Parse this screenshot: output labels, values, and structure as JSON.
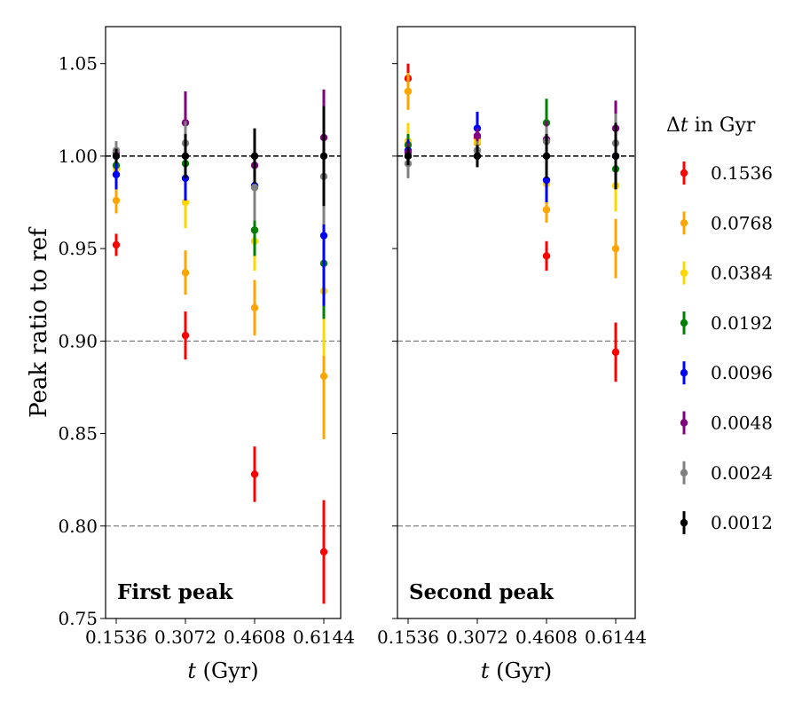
{
  "chart_data": {
    "type": "scatter",
    "ylabel": "Peak ratio to ref",
    "ylim": [
      0.75,
      1.07
    ],
    "yticks": [
      "0.75",
      "0.80",
      "0.85",
      "0.90",
      "0.95",
      "1.00",
      "1.05"
    ],
    "reference_lines": [
      {
        "y": 1.0,
        "color": "#000000",
        "style": "dashed"
      },
      {
        "y": 0.9,
        "color": "#808080",
        "style": "dashed"
      },
      {
        "y": 0.8,
        "color": "#808080",
        "style": "dashed"
      }
    ],
    "legend": {
      "title_prefix": "Δ",
      "title_var": "t",
      "title_suffix": " in Gyr",
      "placement": "right"
    },
    "series": [
      {
        "name": "0.1536",
        "color": "#ff0000"
      },
      {
        "name": "0.0768",
        "color": "#ffa500"
      },
      {
        "name": "0.0384",
        "color": "#ffd700"
      },
      {
        "name": "0.0192",
        "color": "#008000"
      },
      {
        "name": "0.0096",
        "color": "#0000ff"
      },
      {
        "name": "0.0048",
        "color": "#800080"
      },
      {
        "name": "0.0024",
        "color": "#808080"
      },
      {
        "name": "0.0012",
        "color": "#000000"
      }
    ],
    "panels": [
      {
        "title": "First peak",
        "xlabel_var": "t",
        "xlabel_suffix": " (Gyr)",
        "x": [
          "0.1536",
          "0.3072",
          "0.4608",
          "0.6144"
        ],
        "values": [
          [
            0.952,
            0.903,
            0.828,
            0.786
          ],
          [
            0.976,
            0.937,
            0.918,
            0.881
          ],
          [
            0.993,
            0.975,
            0.954,
            0.927
          ],
          [
            0.995,
            0.996,
            0.96,
            0.942
          ],
          [
            0.99,
            0.988,
            0.984,
            0.957
          ],
          [
            1.002,
            1.018,
            0.995,
            1.01
          ],
          [
            1.003,
            1.007,
            0.983,
            0.989
          ],
          [
            1.0,
            1.0,
            1.0,
            1.0
          ]
        ],
        "errors": [
          [
            0.006,
            0.013,
            0.015,
            0.028
          ],
          [
            0.007,
            0.012,
            0.015,
            0.034
          ],
          [
            0.008,
            0.014,
            0.016,
            0.035
          ],
          [
            0.008,
            0.009,
            0.014,
            0.03
          ],
          [
            0.008,
            0.012,
            0.015,
            0.038
          ],
          [
            0.006,
            0.017,
            0.016,
            0.026
          ],
          [
            0.005,
            0.012,
            0.018,
            0.026
          ],
          [
            0.004,
            0.012,
            0.015,
            0.027
          ]
        ]
      },
      {
        "title": "Second peak",
        "xlabel_var": "t",
        "xlabel_suffix": " (Gyr)",
        "x": [
          "0.1536",
          "0.3072",
          "0.4608",
          "0.6144"
        ],
        "values": [
          [
            1.042,
            1.01,
            0.946,
            0.894
          ],
          [
            1.035,
            1.007,
            0.971,
            0.95
          ],
          [
            1.008,
            1.008,
            0.985,
            0.984
          ],
          [
            1.006,
            1.003,
            1.018,
            0.993
          ],
          [
            1.003,
            1.015,
            0.987,
            1.0
          ],
          [
            1.002,
            1.011,
            1.009,
            1.015
          ],
          [
            0.996,
            1.003,
            1.008,
            1.007
          ],
          [
            1.0,
            1.0,
            1.0,
            1.0
          ]
        ],
        "errors": [
          [
            0.008,
            0.006,
            0.008,
            0.016
          ],
          [
            0.01,
            0.005,
            0.007,
            0.016
          ],
          [
            0.01,
            0.005,
            0.01,
            0.014
          ],
          [
            0.006,
            0.004,
            0.013,
            0.01
          ],
          [
            0.006,
            0.009,
            0.012,
            0.012
          ],
          [
            0.005,
            0.004,
            0.01,
            0.015
          ],
          [
            0.008,
            0.005,
            0.008,
            0.016
          ],
          [
            0.005,
            0.006,
            0.012,
            0.018
          ]
        ]
      }
    ]
  }
}
